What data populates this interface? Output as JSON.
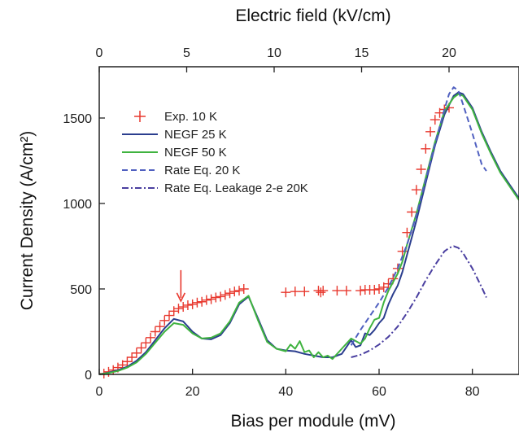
{
  "chart_data": {
    "type": "line",
    "xlabel": "Bias per module (mV)",
    "ylabel": "Current Density (A/cm²)",
    "top_xlabel": "Electric field (kV/cm)",
    "xlim": [
      0,
      90
    ],
    "ylim": [
      0,
      1800
    ],
    "top_xlim": [
      0,
      24
    ],
    "x_ticks": [
      "0",
      "20",
      "40",
      "60",
      "80"
    ],
    "y_ticks": [
      "0",
      "500",
      "1000",
      "1500"
    ],
    "top_x_ticks": [
      "0",
      "5",
      "10",
      "15",
      "20"
    ],
    "grid": false,
    "legend_position": "top-left",
    "annotation": {
      "type": "arrow",
      "x": 17.5,
      "y": 410,
      "color": "#e8382e"
    },
    "series": [
      {
        "name": "Exp. 10 K",
        "style": "marker-plus",
        "color": "#e8382e",
        "x": [
          1,
          2,
          3,
          4,
          5,
          6,
          7,
          8,
          9,
          10,
          11,
          12,
          13,
          14,
          15,
          16,
          17,
          18,
          19,
          20,
          21,
          22,
          23,
          24,
          25,
          26,
          27,
          28,
          29,
          30,
          31,
          40,
          42,
          44,
          47,
          47.5,
          48,
          51,
          53,
          56,
          57,
          58,
          59,
          60,
          61,
          62,
          63,
          64,
          65,
          66,
          67,
          68,
          69,
          70,
          71,
          72,
          73,
          74,
          75
        ],
        "y": [
          5,
          15,
          25,
          40,
          55,
          75,
          100,
          125,
          155,
          185,
          215,
          250,
          280,
          315,
          345,
          370,
          385,
          395,
          405,
          410,
          420,
          425,
          435,
          440,
          450,
          455,
          465,
          475,
          485,
          490,
          500,
          480,
          485,
          485,
          490,
          480,
          490,
          490,
          490,
          490,
          495,
          495,
          495,
          500,
          510,
          530,
          560,
          620,
          720,
          830,
          950,
          1080,
          1200,
          1320,
          1420,
          1490,
          1530,
          1550,
          1560
        ]
      },
      {
        "name": "NEGF 25 K",
        "style": "solid",
        "color": "#2b3e8e",
        "x": [
          0,
          2,
          4,
          6,
          8,
          10,
          12,
          14,
          16,
          18,
          20,
          22,
          24,
          26,
          28,
          30,
          32,
          34,
          36,
          38,
          40,
          42,
          44,
          46,
          48,
          50,
          52,
          54,
          55,
          56,
          57,
          58,
          59,
          60,
          61,
          62,
          63,
          64,
          65,
          66,
          68,
          70,
          72,
          74,
          76,
          77,
          78,
          80,
          82,
          84,
          86,
          88,
          90
        ],
        "y": [
          0,
          10,
          25,
          45,
          80,
          130,
          200,
          270,
          325,
          310,
          250,
          210,
          205,
          230,
          300,
          410,
          455,
          330,
          200,
          150,
          140,
          135,
          120,
          110,
          100,
          100,
          120,
          200,
          160,
          170,
          240,
          230,
          260,
          300,
          330,
          410,
          470,
          520,
          600,
          700,
          900,
          1120,
          1340,
          1520,
          1630,
          1650,
          1640,
          1560,
          1420,
          1300,
          1190,
          1110,
          1030
        ]
      },
      {
        "name": "NEGF 50 K",
        "style": "solid",
        "color": "#3fb33f",
        "x": [
          0,
          2,
          4,
          6,
          8,
          10,
          12,
          14,
          16,
          18,
          20,
          22,
          24,
          26,
          28,
          30,
          32,
          34,
          36,
          38,
          40,
          41,
          42,
          43,
          44,
          45,
          46,
          47,
          48,
          49,
          50,
          52,
          54,
          56,
          57,
          58,
          59,
          60,
          61,
          62,
          63,
          64,
          65,
          66,
          68,
          70,
          72,
          74,
          76,
          77,
          78,
          80,
          82,
          84,
          86,
          88,
          90
        ],
        "y": [
          0,
          8,
          20,
          40,
          70,
          120,
          185,
          250,
          300,
          290,
          240,
          210,
          215,
          240,
          310,
          420,
          460,
          320,
          190,
          150,
          135,
          175,
          150,
          195,
          130,
          140,
          100,
          130,
          100,
          110,
          90,
          150,
          210,
          180,
          210,
          270,
          320,
          330,
          420,
          490,
          540,
          590,
          660,
          760,
          940,
          1150,
          1360,
          1540,
          1620,
          1640,
          1630,
          1550,
          1410,
          1290,
          1180,
          1100,
          1020
        ]
      },
      {
        "name": "Rate Eq. 20 K",
        "style": "dashed",
        "color": "#5060c0",
        "x": [
          54,
          56,
          58,
          60,
          62,
          64,
          66,
          68,
          70,
          72,
          74,
          75,
          76,
          77,
          78,
          80,
          82,
          83
        ],
        "y": [
          170,
          260,
          340,
          420,
          510,
          620,
          760,
          930,
          1140,
          1350,
          1550,
          1640,
          1680,
          1660,
          1580,
          1410,
          1230,
          1190
        ]
      },
      {
        "name": "Rate Eq. Leakage 2-e 20K",
        "style": "dash-dot",
        "color": "#4a3fa0",
        "x": [
          54,
          56,
          58,
          60,
          62,
          64,
          66,
          68,
          70,
          72,
          74,
          75,
          76,
          77,
          78,
          80,
          82,
          83
        ],
        "y": [
          100,
          115,
          140,
          175,
          220,
          280,
          360,
          450,
          550,
          640,
          720,
          740,
          750,
          740,
          710,
          620,
          510,
          450
        ]
      }
    ]
  }
}
